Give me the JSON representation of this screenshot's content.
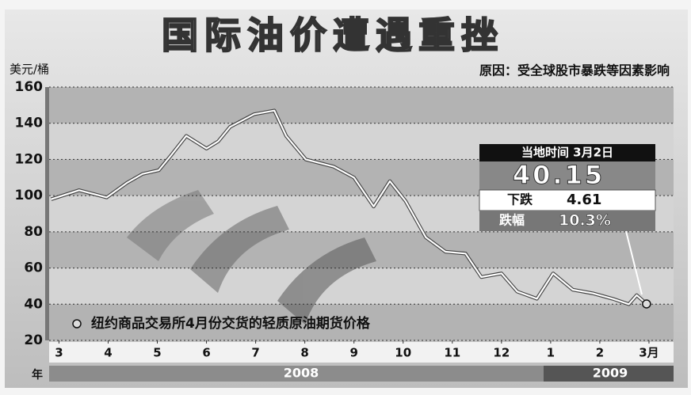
{
  "chart_data": {
    "type": "line",
    "title": "国际油价遭遇重挫",
    "subtitle": "原因：受全球股市暴跌等因素影响",
    "y_label": "美元/桶",
    "x": [
      -0.16,
      0.41,
      0.97,
      1.38,
      1.7,
      2.03,
      2.27,
      2.59,
      3.0,
      3.24,
      3.48,
      3.97,
      4.38,
      4.62,
      5.02,
      5.59,
      6.0,
      6.4,
      6.73,
      7.05,
      7.46,
      7.86,
      8.27,
      8.59,
      9.0,
      9.32,
      9.72,
      10.05,
      10.45,
      10.86,
      11.26,
      11.59,
      11.75,
      11.95
    ],
    "series": [
      {
        "name": "纽约商品交易所4月份交货的轻质原油期货价格",
        "color": "#ffffff",
        "values": [
          98,
          103,
          99,
          107,
          112,
          114,
          122,
          133,
          126,
          130,
          138,
          145,
          147,
          133,
          120,
          116,
          110,
          94,
          108,
          97,
          77,
          69,
          68,
          55,
          57,
          47,
          43,
          57,
          48,
          46,
          43,
          40,
          45,
          40.15
        ]
      }
    ],
    "xlim": [
      -0.2,
      12.5
    ],
    "xticks": [
      {
        "value": 0,
        "label": "3"
      },
      {
        "value": 1,
        "label": "4"
      },
      {
        "value": 2,
        "label": "5"
      },
      {
        "value": 3,
        "label": "6"
      },
      {
        "value": 4,
        "label": "7"
      },
      {
        "value": 5,
        "label": "8"
      },
      {
        "value": 6,
        "label": "9"
      },
      {
        "value": 7,
        "label": "10"
      },
      {
        "value": 8,
        "label": "11"
      },
      {
        "value": 9,
        "label": "12"
      },
      {
        "value": 10,
        "label": "1"
      },
      {
        "value": 11,
        "label": "2"
      },
      {
        "value": 12,
        "label": "3月"
      }
    ],
    "ylim": [
      20,
      160
    ],
    "yticks": [
      20,
      40,
      60,
      80,
      100,
      120,
      140,
      160
    ],
    "grid": true,
    "year_axis_label": "年",
    "years": [
      "2008",
      "2009"
    ],
    "info_box": {
      "header": "当地时间 3月2日",
      "drop_label": "下跌",
      "drop": "4.61",
      "pct_label": "跌幅",
      "pct": "10.3%"
    }
  }
}
